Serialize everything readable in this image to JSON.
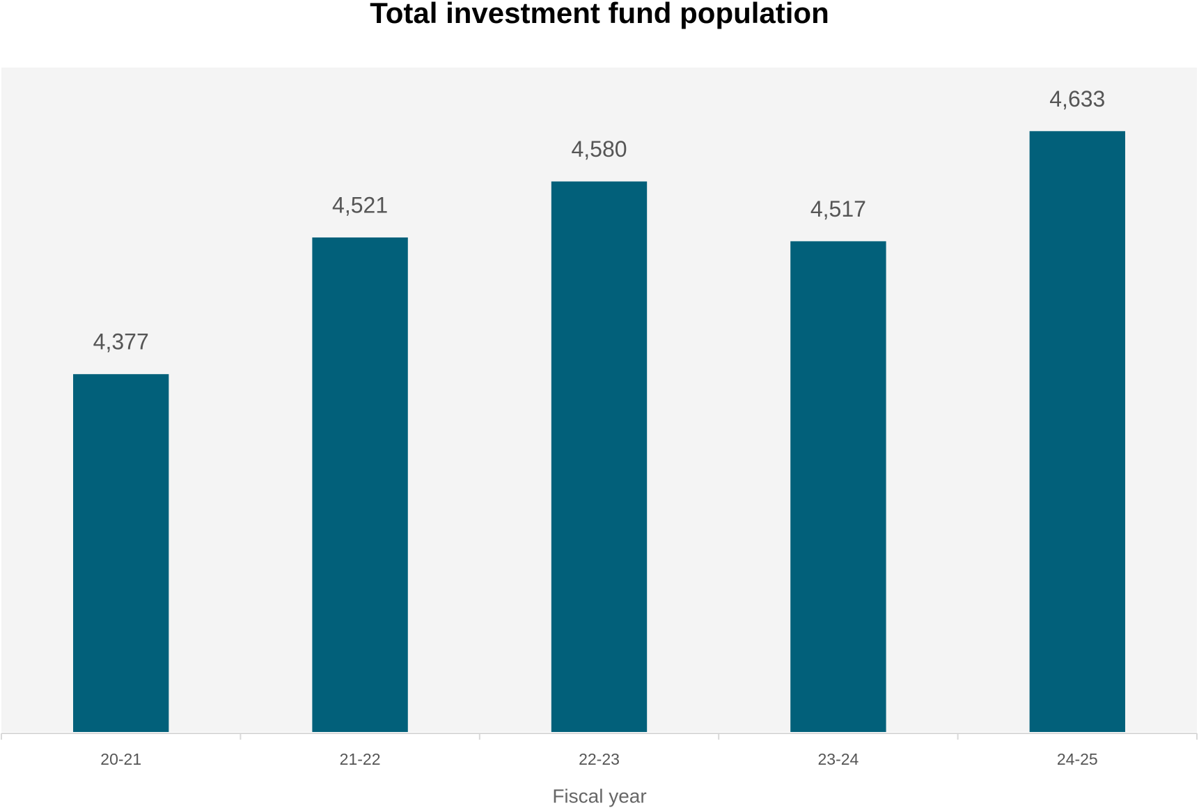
{
  "chart_data": {
    "type": "bar",
    "title": "Total investment fund population",
    "categories": [
      "20-21",
      "21-22",
      "22-23",
      "23-24",
      "24-25"
    ],
    "values": [
      4377,
      4521,
      4580,
      4517,
      4633
    ],
    "value_labels": [
      "4,377",
      "4,521",
      "4,580",
      "4,517",
      "4,633"
    ],
    "color": "#02607a",
    "xlabel": "Fiscal year",
    "ylim": [
      4000,
      4700
    ]
  }
}
